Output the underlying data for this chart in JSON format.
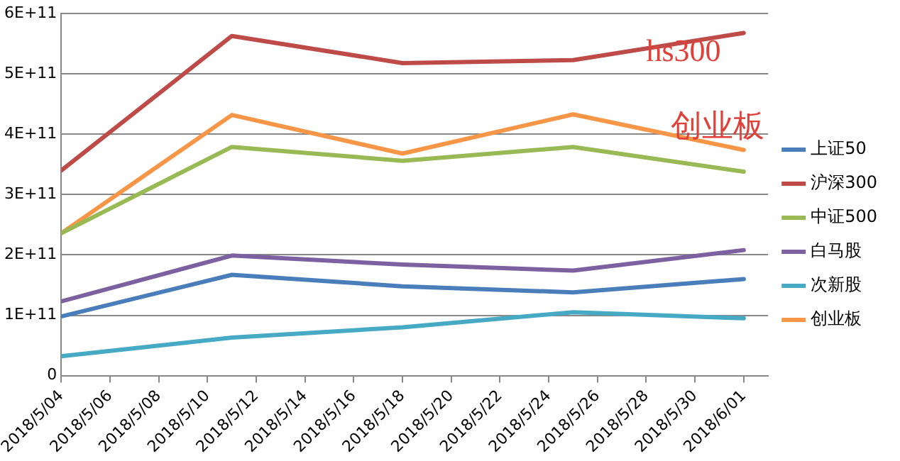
{
  "chart_data": {
    "type": "line",
    "x": [
      "2018-05-04",
      "2018-05-11",
      "2018-05-18",
      "2018-05-25",
      "2018-06-01"
    ],
    "series": [
      {
        "name": "上证50",
        "color": "#4a7ebb",
        "values": [
          98000000000,
          167000000000,
          148000000000,
          138000000000,
          160000000000
        ]
      },
      {
        "name": "沪深300",
        "color": "#be4b48",
        "values": [
          340000000000,
          563000000000,
          518000000000,
          523000000000,
          568000000000
        ]
      },
      {
        "name": "中证500",
        "color": "#98b954",
        "values": [
          236000000000,
          379000000000,
          356000000000,
          379000000000,
          338000000000
        ]
      },
      {
        "name": "白马股",
        "color": "#7d60a0",
        "values": [
          123000000000,
          199000000000,
          184000000000,
          174000000000,
          208000000000
        ]
      },
      {
        "name": "次新股",
        "color": "#46aac5",
        "values": [
          32000000000,
          63000000000,
          80000000000,
          105000000000,
          95000000000
        ]
      },
      {
        "name": "创业板",
        "color": "#f79646",
        "values": [
          236000000000,
          432000000000,
          368000000000,
          433000000000,
          374000000000
        ]
      }
    ],
    "xlim": [
      "2018-05-04",
      "2018-06-02"
    ],
    "xticks": [
      {
        "value": "2018-05-04",
        "label": "2018/5/04"
      },
      {
        "value": "2018-05-06",
        "label": "2018/5/06"
      },
      {
        "value": "2018-05-08",
        "label": "2018/5/08"
      },
      {
        "value": "2018-05-10",
        "label": "2018/5/10"
      },
      {
        "value": "2018-05-12",
        "label": "2018/5/12"
      },
      {
        "value": "2018-05-14",
        "label": "2018/5/14"
      },
      {
        "value": "2018-05-16",
        "label": "2018/5/16"
      },
      {
        "value": "2018-05-18",
        "label": "2018/5/18"
      },
      {
        "value": "2018-05-20",
        "label": "2018/5/20"
      },
      {
        "value": "2018-05-22",
        "label": "2018/5/22"
      },
      {
        "value": "2018-05-24",
        "label": "2018/5/24"
      },
      {
        "value": "2018-05-26",
        "label": "2018/5/26"
      },
      {
        "value": "2018-05-28",
        "label": "2018/5/28"
      },
      {
        "value": "2018-05-30",
        "label": "2018/5/30"
      },
      {
        "value": "2018-06-01",
        "label": "2018/6/01"
      }
    ],
    "ylim": [
      0,
      600000000000
    ],
    "yticks": [
      0,
      {
        "value": 100000000000,
        "label": "1E+11"
      },
      {
        "value": 200000000000,
        "label": "2E+11"
      },
      {
        "value": 300000000000,
        "label": "3E+11"
      },
      {
        "value": 400000000000,
        "label": "4E+11"
      },
      {
        "value": 500000000000,
        "label": "5E+11"
      },
      {
        "value": 600000000000,
        "label": "6E+11"
      }
    ],
    "annotations": [
      {
        "text": "hs300",
        "x": "2018-05-28",
        "y": 535000000000
      },
      {
        "text": "创业板",
        "x": "2018-05-29",
        "y": 410000000000
      }
    ],
    "grid": "y",
    "legend": "right",
    "marker": "none",
    "line_style": "solid"
  }
}
